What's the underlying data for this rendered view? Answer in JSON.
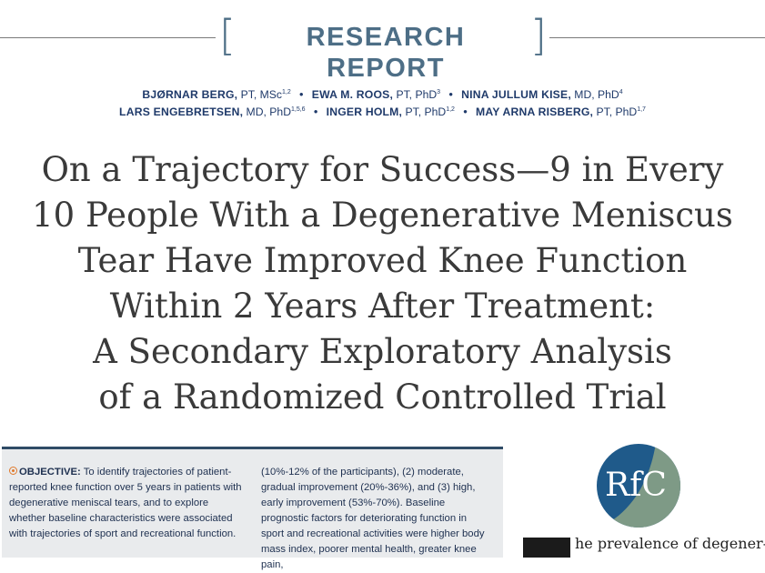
{
  "header": {
    "section_label": "RESEARCH REPORT"
  },
  "authors": {
    "line1": [
      {
        "name": "BJØRNAR BERG,",
        "credentials": " PT, MSc",
        "sup": "1,2"
      },
      {
        "name": "EWA M. ROOS,",
        "credentials": " PT, PhD",
        "sup": "3"
      },
      {
        "name": "NINA JULLUM KISE,",
        "credentials": " MD, PhD",
        "sup": "4"
      }
    ],
    "line2": [
      {
        "name": "LARS ENGEBRETSEN,",
        "credentials": " MD, PhD",
        "sup": "1,5,6"
      },
      {
        "name": "INGER HOLM,",
        "credentials": " PT, PhD",
        "sup": "1,2"
      },
      {
        "name": "MAY ARNA RISBERG,",
        "credentials": " PT, PhD",
        "sup": "1,7"
      }
    ]
  },
  "title_lines": [
    "On a Trajectory for Success—9 in Every",
    "10 People With a Degenerative Meniscus",
    "Tear Have Improved Knee Function",
    "Within 2 Years After Treatment:",
    "A Secondary Exploratory Analysis",
    "of a Randomized Controlled Trial"
  ],
  "abstract": {
    "objective_label": "OBJECTIVE:",
    "col1_text": "To identify trajectories of patient-reported knee function over 5 years in patients with degenerative meniscal tears, and to explore whether baseline characteristics were associated with trajectories of sport and recreational function.",
    "col2_text": "(10%-12% of the participants), (2) moderate, gradual improvement (20%-36%), and (3) high, early improvement (53%-70%). Baseline prognostic factors for deteriorating function in sport and recreational activities were higher body mass index, poorer mental health, greater knee pain,"
  },
  "logo": {
    "text": "RfC",
    "colors": {
      "blue": "#1f5a8a",
      "green": "#7e9a86"
    }
  },
  "body": {
    "text": "he prevalence of degener-"
  }
}
